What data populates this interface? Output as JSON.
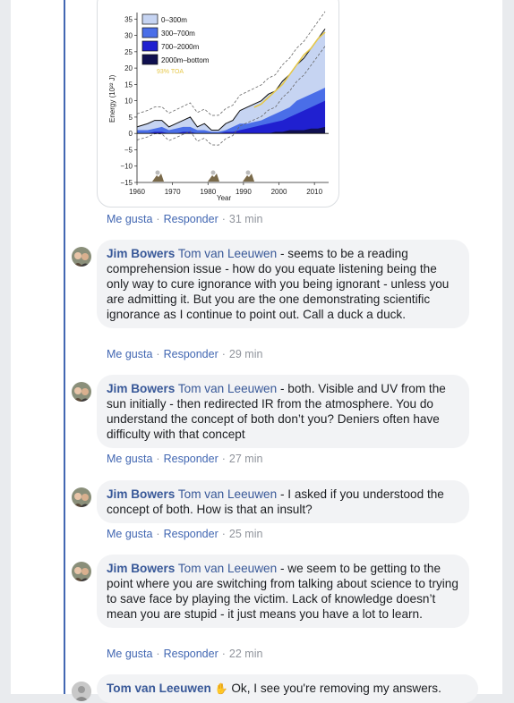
{
  "chart": {
    "legend": [
      "0–300m",
      "300–700m",
      "700–2000m",
      "2000m–bottom"
    ],
    "legend_colors": [
      "#c6d4f2",
      "#4a6ee8",
      "#2020d0",
      "#101050"
    ],
    "toa_label": "93% TOA",
    "ylabel": "Energy (10²² J)",
    "xlabel": "Year",
    "yticks": [
      "35",
      "30",
      "25",
      "20",
      "15",
      "10",
      "5",
      "0",
      "−5",
      "−10",
      "−15"
    ],
    "xticks": [
      "1960",
      "1970",
      "1980",
      "1990",
      "2000",
      "2010"
    ]
  },
  "chart_data": {
    "type": "area",
    "title": "",
    "xlabel": "Year",
    "ylabel": "Energy (10²² J)",
    "xlim": [
      1960,
      2014
    ],
    "ylim": [
      -15,
      37
    ],
    "x": [
      1960,
      1963,
      1965,
      1967,
      1969,
      1971,
      1973,
      1975,
      1977,
      1979,
      1981,
      1983,
      1985,
      1987,
      1989,
      1991,
      1993,
      1995,
      1997,
      1999,
      2001,
      2003,
      2005,
      2007,
      2009,
      2011,
      2013
    ],
    "series": [
      {
        "name": "2000m–bottom",
        "values": [
          0,
          0,
          0,
          0,
          0,
          0,
          0,
          0,
          0,
          0,
          0,
          0,
          0,
          0,
          0,
          0,
          0,
          0,
          0,
          0.5,
          0.5,
          1,
          1,
          1,
          1.5,
          1.5,
          2
        ]
      },
      {
        "name": "700–2000m",
        "values": [
          0,
          0,
          0.5,
          0.5,
          0,
          0,
          0.5,
          0.5,
          0,
          0,
          0,
          0,
          0.5,
          0.5,
          1,
          1.5,
          2,
          2.5,
          3,
          3.5,
          4,
          5,
          6,
          7,
          8,
          9,
          10
        ]
      },
      {
        "name": "300–700m",
        "values": [
          1,
          1,
          1.5,
          2,
          1,
          1.5,
          2,
          2,
          1,
          1,
          0.5,
          0.5,
          1,
          2,
          3,
          3,
          3.5,
          4,
          5,
          6,
          7,
          8,
          10,
          11,
          12,
          13,
          14
        ]
      },
      {
        "name": "0–300m",
        "values": [
          2,
          3,
          4,
          4,
          2,
          3,
          4,
          5,
          2,
          3,
          1,
          1,
          3,
          4,
          7,
          8,
          9,
          10,
          12,
          13,
          16,
          18,
          21,
          23,
          26,
          29,
          32
        ]
      }
    ],
    "toa_series": {
      "name": "93% TOA",
      "values": [
        null,
        null,
        null,
        null,
        null,
        null,
        null,
        null,
        null,
        null,
        null,
        null,
        null,
        null,
        null,
        null,
        8,
        9,
        11,
        13,
        15,
        18,
        21,
        24,
        26,
        29,
        31
      ]
    }
  },
  "comments": [
    {
      "meta": {
        "like": "Me gusta",
        "reply": "Responder",
        "time": "31 min"
      }
    },
    {
      "author": "Jim Bowers",
      "mention": "Tom van Leeuwen",
      "text": " - seems to be a reading comprehension issue - how do you equate listening being the only way to cure ignorance with you being ignorant - unless you are admitting it. But you are the one demonstrating scientific ignorance as I continue to point out. Call a duck a duck.",
      "meta": {
        "like": "Me gusta",
        "reply": "Responder",
        "time": "29 min"
      }
    },
    {
      "author": "Jim Bowers",
      "mention": "Tom van Leeuwen",
      "text": " - both. Visible and UV from the sun initially - then redirected IR from the atmosphere. You do understand the concept of both don’t you? Deniers often have difficulty with that concept",
      "meta": {
        "like": "Me gusta",
        "reply": "Responder",
        "time": "27 min"
      }
    },
    {
      "author": "Jim Bowers",
      "mention": "Tom van Leeuwen",
      "text": " - I asked if you understood the concept of both. How is that an insult?",
      "meta": {
        "like": "Me gusta",
        "reply": "Responder",
        "time": "25 min"
      }
    },
    {
      "author": "Jim Bowers",
      "mention": "Tom van Leeuwen",
      "text": " - we seem to be getting to the point where you are switching from talking about science to trying to save face by playing the victim. Lack of knowledge doesn’t mean you are stupid - it just means you have a lot to learn.",
      "meta": {
        "like": "Me gusta",
        "reply": "Responder",
        "time": "22 min"
      }
    },
    {
      "author": "Tom van Leeuwen",
      "emoji": "✋",
      "text": " Ok, I see you're removing my answers."
    }
  ]
}
